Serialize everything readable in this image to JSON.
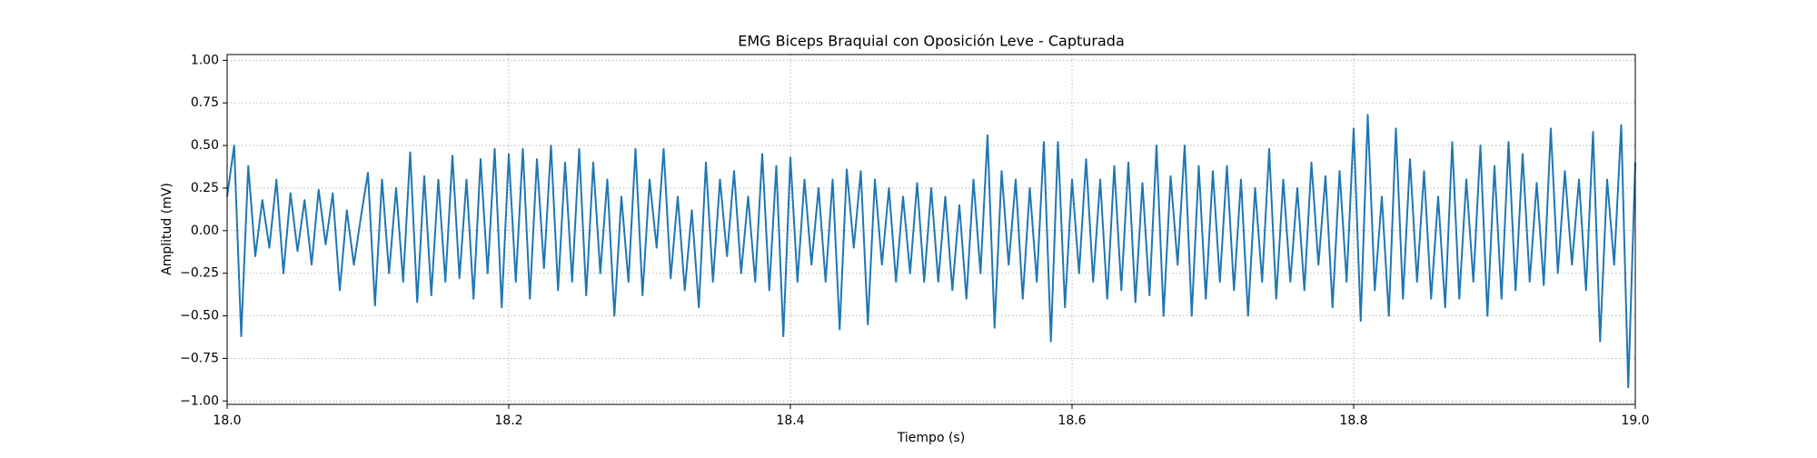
{
  "chart_data": {
    "type": "line",
    "title": "EMG Biceps Braquial con Oposición Leve - Capturada",
    "x_label": "Tiempo (s)",
    "y_label": "Amplitud (mV)",
    "x": [
      18.0,
      18.005,
      18.01,
      18.015,
      18.02,
      18.025,
      18.03,
      18.035,
      18.04,
      18.045,
      18.05,
      18.055,
      18.06,
      18.065,
      18.07,
      18.075,
      18.08,
      18.085,
      18.09,
      18.095,
      18.1,
      18.105,
      18.11,
      18.115,
      18.12,
      18.125,
      18.13,
      18.135,
      18.14,
      18.145,
      18.15,
      18.155,
      18.16,
      18.165,
      18.17,
      18.175,
      18.18,
      18.185,
      18.19,
      18.195,
      18.2,
      18.205,
      18.21,
      18.215,
      18.22,
      18.225,
      18.23,
      18.235,
      18.24,
      18.245,
      18.25,
      18.255,
      18.26,
      18.265,
      18.27,
      18.275,
      18.28,
      18.285,
      18.29,
      18.295,
      18.3,
      18.305,
      18.31,
      18.315,
      18.32,
      18.325,
      18.33,
      18.335,
      18.34,
      18.345,
      18.35,
      18.355,
      18.36,
      18.365,
      18.37,
      18.375,
      18.38,
      18.385,
      18.39,
      18.395,
      18.4,
      18.405,
      18.41,
      18.415,
      18.42,
      18.425,
      18.43,
      18.435,
      18.44,
      18.445,
      18.45,
      18.455,
      18.46,
      18.465,
      18.47,
      18.475,
      18.48,
      18.485,
      18.49,
      18.495,
      18.5,
      18.505,
      18.51,
      18.515,
      18.52,
      18.525,
      18.53,
      18.535,
      18.54,
      18.545,
      18.55,
      18.555,
      18.56,
      18.565,
      18.57,
      18.575,
      18.58,
      18.585,
      18.59,
      18.595,
      18.6,
      18.605,
      18.61,
      18.615,
      18.62,
      18.625,
      18.63,
      18.635,
      18.64,
      18.645,
      18.65,
      18.655,
      18.66,
      18.665,
      18.67,
      18.675,
      18.68,
      18.685,
      18.69,
      18.695,
      18.7,
      18.705,
      18.71,
      18.715,
      18.72,
      18.725,
      18.73,
      18.735,
      18.74,
      18.745,
      18.75,
      18.755,
      18.76,
      18.765,
      18.77,
      18.775,
      18.78,
      18.785,
      18.79,
      18.795,
      18.8,
      18.805,
      18.81,
      18.815,
      18.82,
      18.825,
      18.83,
      18.835,
      18.84,
      18.845,
      18.85,
      18.855,
      18.86,
      18.865,
      18.87,
      18.875,
      18.88,
      18.885,
      18.89,
      18.895,
      18.9,
      18.905,
      18.91,
      18.915,
      18.92,
      18.925,
      18.93,
      18.935,
      18.94,
      18.945,
      18.95,
      18.955,
      18.96,
      18.965,
      18.97,
      18.975,
      18.98,
      18.985,
      18.99,
      18.995,
      19.0
    ],
    "series": [
      {
        "color": "#1f77b4",
        "values": [
          0.2,
          0.5,
          -0.62,
          0.38,
          -0.15,
          0.18,
          -0.1,
          0.3,
          -0.25,
          0.22,
          -0.12,
          0.18,
          -0.2,
          0.24,
          -0.08,
          0.22,
          -0.35,
          0.12,
          -0.2,
          0.08,
          0.34,
          -0.44,
          0.3,
          -0.25,
          0.25,
          -0.3,
          0.46,
          -0.42,
          0.32,
          -0.38,
          0.3,
          -0.3,
          0.44,
          -0.28,
          0.3,
          -0.4,
          0.42,
          -0.25,
          0.48,
          -0.45,
          0.45,
          -0.3,
          0.48,
          -0.4,
          0.42,
          -0.22,
          0.5,
          -0.35,
          0.4,
          -0.3,
          0.48,
          -0.38,
          0.4,
          -0.25,
          0.3,
          -0.5,
          0.2,
          -0.3,
          0.48,
          -0.38,
          0.3,
          -0.1,
          0.48,
          -0.28,
          0.2,
          -0.35,
          0.12,
          -0.45,
          0.4,
          -0.3,
          0.3,
          -0.15,
          0.35,
          -0.25,
          0.2,
          -0.3,
          0.45,
          -0.35,
          0.38,
          -0.62,
          0.43,
          -0.3,
          0.3,
          -0.2,
          0.25,
          -0.3,
          0.3,
          -0.58,
          0.36,
          -0.1,
          0.35,
          -0.55,
          0.3,
          -0.2,
          0.25,
          -0.3,
          0.2,
          -0.25,
          0.28,
          -0.3,
          0.25,
          -0.3,
          0.2,
          -0.35,
          0.15,
          -0.4,
          0.3,
          -0.25,
          0.56,
          -0.57,
          0.35,
          -0.2,
          0.3,
          -0.4,
          0.25,
          -0.3,
          0.52,
          -0.65,
          0.52,
          -0.45,
          0.3,
          -0.25,
          0.42,
          -0.3,
          0.3,
          -0.4,
          0.38,
          -0.35,
          0.4,
          -0.42,
          0.28,
          -0.38,
          0.5,
          -0.5,
          0.32,
          -0.2,
          0.5,
          -0.5,
          0.38,
          -0.4,
          0.35,
          -0.3,
          0.38,
          -0.35,
          0.3,
          -0.5,
          0.25,
          -0.3,
          0.48,
          -0.4,
          0.3,
          -0.3,
          0.25,
          -0.35,
          0.4,
          -0.2,
          0.32,
          -0.45,
          0.35,
          -0.3,
          0.6,
          -0.53,
          0.68,
          -0.35,
          0.2,
          -0.5,
          0.6,
          -0.4,
          0.42,
          -0.3,
          0.35,
          -0.4,
          0.2,
          -0.45,
          0.52,
          -0.4,
          0.3,
          -0.3,
          0.5,
          -0.5,
          0.38,
          -0.4,
          0.52,
          -0.35,
          0.45,
          -0.3,
          0.28,
          -0.32,
          0.6,
          -0.25,
          0.35,
          -0.2,
          0.3,
          -0.35,
          0.58,
          -0.65,
          0.3,
          -0.2,
          0.62,
          -0.92,
          0.4
        ]
      }
    ],
    "xlim": [
      18.0,
      19.0
    ],
    "xticks": [
      {
        "value": 18.0,
        "label": "18.0"
      },
      18.2,
      18.4,
      18.6,
      18.8,
      {
        "value": 19.0,
        "label": "19.0"
      }
    ],
    "ylim": [
      -1.02,
      1.034
    ],
    "yticks": [
      {
        "value": -1.0,
        "label": "−1.00"
      },
      {
        "value": -0.75,
        "label": "−0.75"
      },
      {
        "value": -0.5,
        "label": "−0.50"
      },
      {
        "value": -0.25,
        "label": "−0.25"
      },
      {
        "value": 0,
        "label": "0.00"
      },
      0.25,
      {
        "value": 0.5,
        "label": "0.50"
      },
      0.75,
      {
        "value": 1.0,
        "label": "1.00"
      }
    ],
    "grid": true
  }
}
